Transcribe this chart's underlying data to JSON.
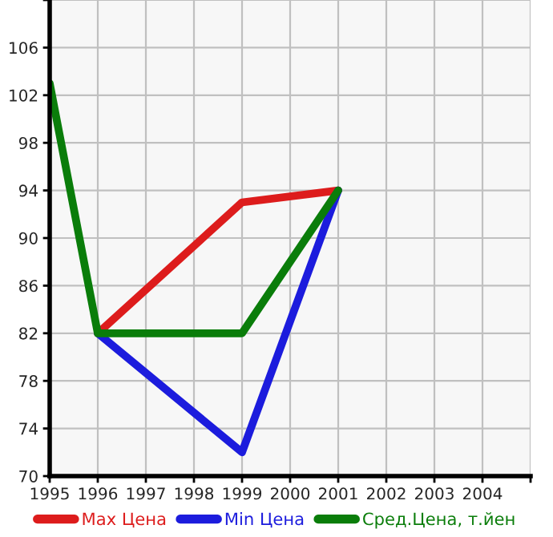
{
  "chart_data": {
    "type": "line",
    "x": [
      1995,
      1996,
      1999,
      2001
    ],
    "series": [
      {
        "name": "Max Цена",
        "color": "#dd1c1c",
        "values": [
          null,
          82,
          93,
          94
        ]
      },
      {
        "name": "Min Цена",
        "color": "#1c1cdd",
        "values": [
          null,
          82,
          72,
          94
        ]
      },
      {
        "name": "Сред.Цена, т.йен",
        "color": "#0a7d0a",
        "values": [
          103,
          82,
          82,
          94
        ]
      }
    ],
    "xlim": [
      1995,
      2005
    ],
    "xticks": [
      1995,
      1996,
      1997,
      1998,
      1999,
      2000,
      2001,
      2002,
      2003,
      2004,
      {
        "value": 2005,
        "label": null
      }
    ],
    "ylim": [
      70,
      110
    ],
    "yticks": [
      70,
      74,
      78,
      82,
      86,
      90,
      94,
      98,
      102,
      106,
      {
        "value": 110,
        "label": null
      }
    ],
    "grid": true,
    "legend": "bottom",
    "marker": "none",
    "line_style": "solid"
  }
}
